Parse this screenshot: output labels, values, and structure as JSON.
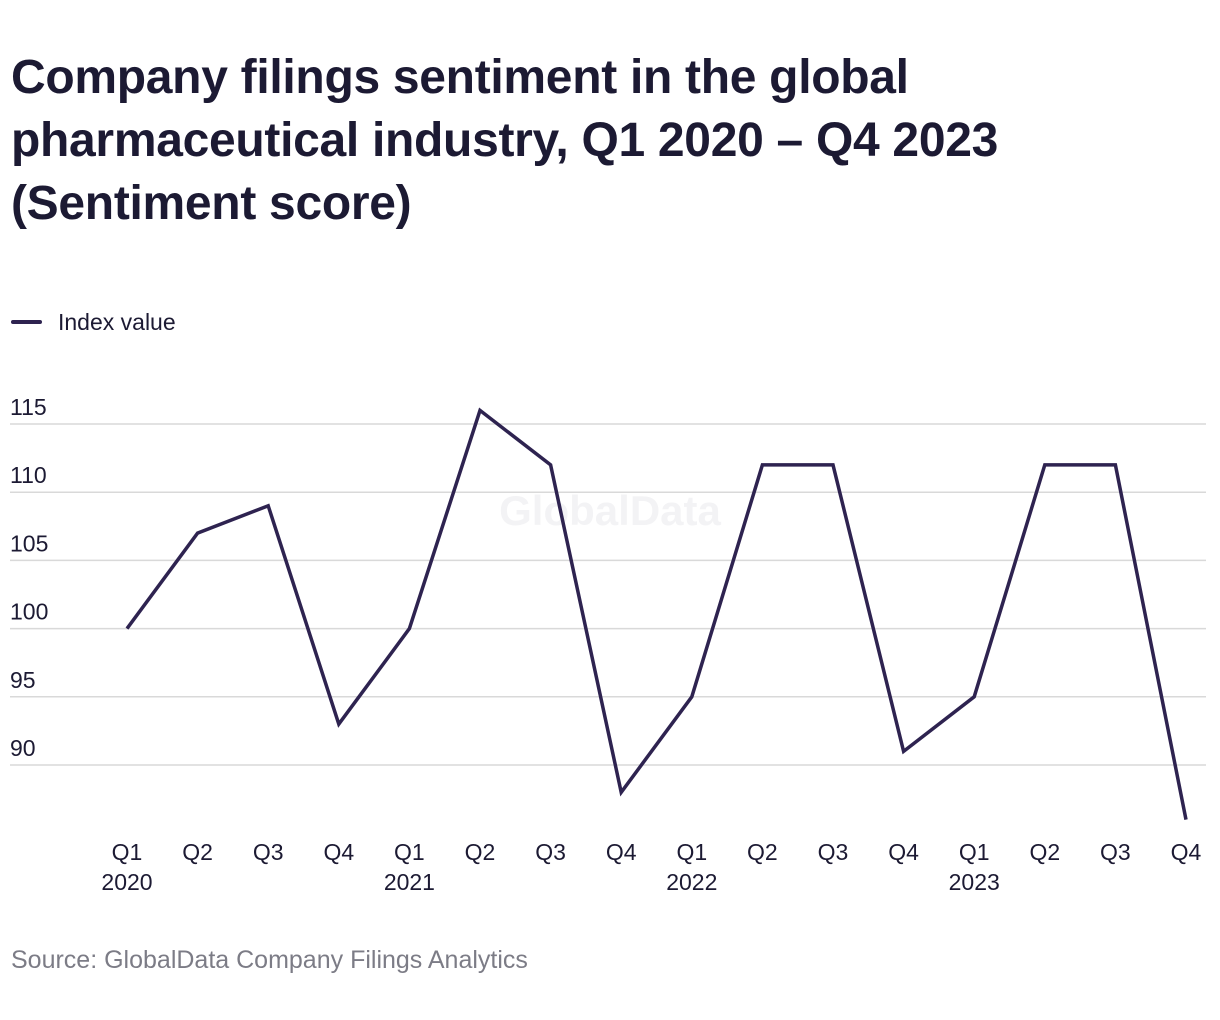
{
  "title_lines": [
    "Company filings sentiment in the global",
    "pharmaceutical industry, Q1 2020 – Q4 2023",
    "(Sentiment score)"
  ],
  "source": "Source: GlobalData Company Filings Analytics",
  "watermark": "GlobalData",
  "colors": {
    "line": "#2e2350",
    "grid": "#d9d9d9",
    "text": "#1c1a33",
    "source": "#7c7c86"
  },
  "chart_data": {
    "type": "line",
    "categories": [
      "Q1",
      "Q2",
      "Q3",
      "Q4",
      "Q1",
      "Q2",
      "Q3",
      "Q4",
      "Q1",
      "Q2",
      "Q3",
      "Q4",
      "Q1",
      "Q2",
      "Q3",
      "Q4"
    ],
    "year_labels": [
      "2020",
      "",
      "",
      "",
      "2021",
      "",
      "",
      "",
      "2022",
      "",
      "",
      "",
      "2023",
      "",
      "",
      ""
    ],
    "series": [
      {
        "name": "Index value",
        "values": [
          100,
          107,
          109,
          93,
          100,
          116,
          112,
          88,
          95,
          112,
          112,
          91,
          95,
          112,
          112,
          86
        ]
      }
    ],
    "yticks": [
      115,
      110,
      105,
      100,
      95,
      90
    ],
    "ylim": [
      85,
      117
    ],
    "grid": true,
    "legend": "top-left"
  }
}
